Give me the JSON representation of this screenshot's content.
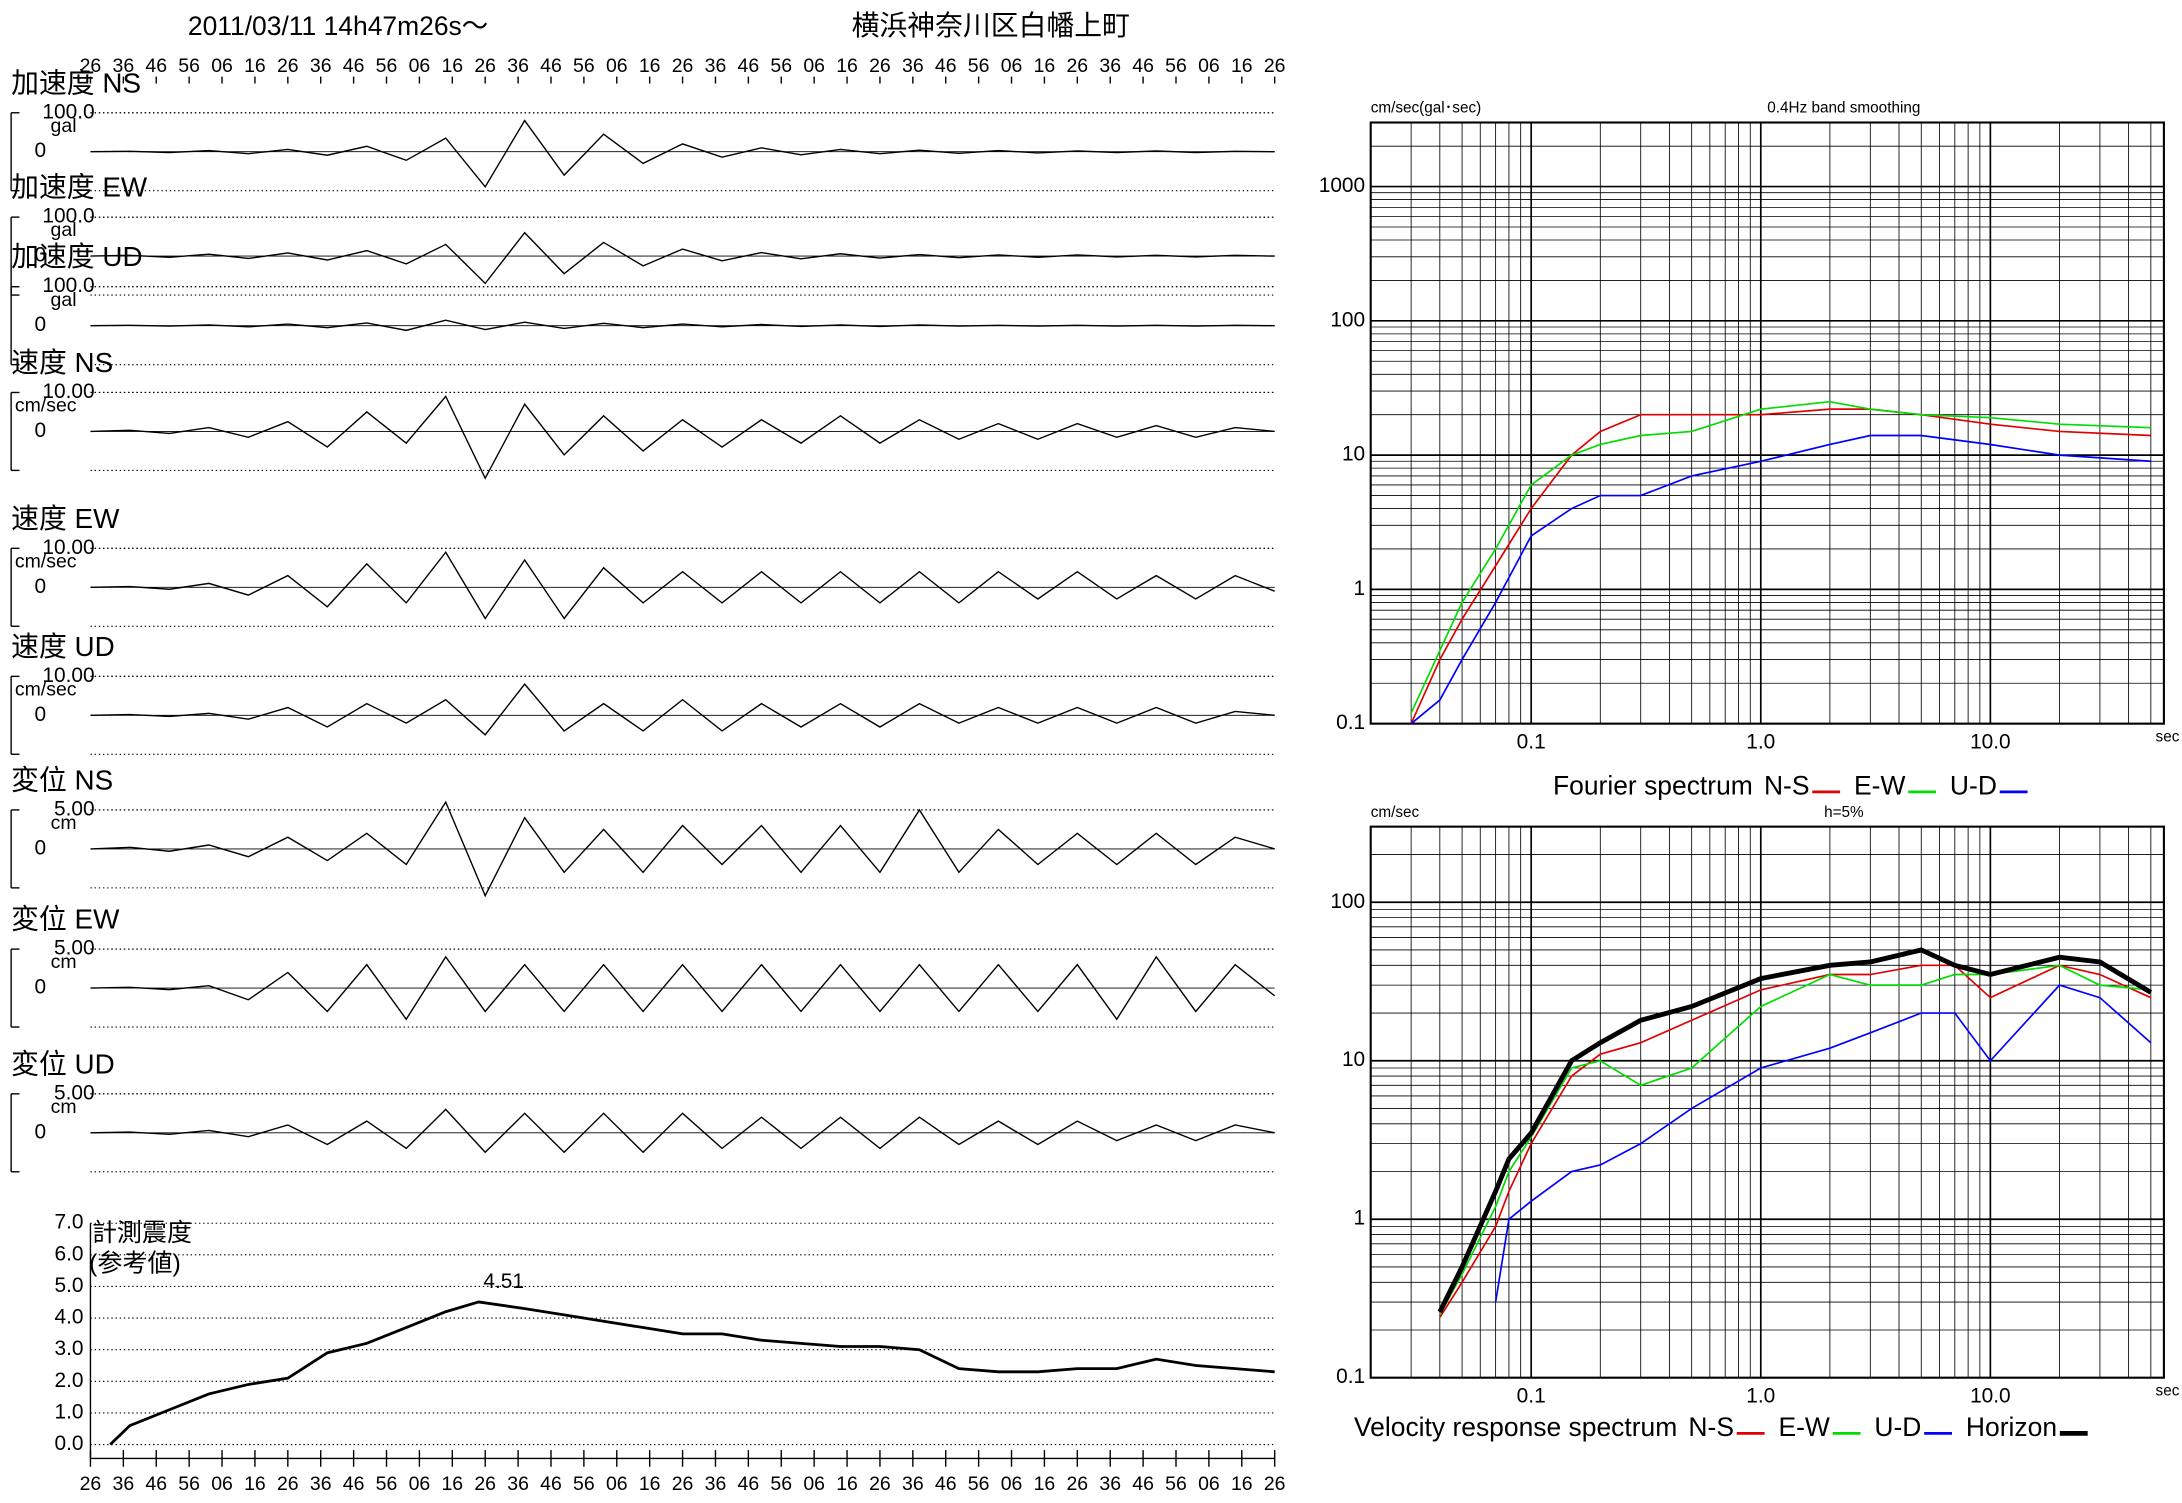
{
  "header": {
    "datetime": "2011/03/11  14h47m26s～",
    "location": "横浜神奈川区白幡上町"
  },
  "chart_data": [
    {
      "type": "waveform",
      "xlim": [
        0,
        360
      ],
      "xticks": [
        {
          "value": 0,
          "label": "26"
        },
        {
          "value": 10,
          "label": "36"
        },
        {
          "value": 20,
          "label": "46"
        },
        {
          "value": 30,
          "label": "56"
        },
        {
          "value": 40,
          "label": "06"
        },
        {
          "value": 50,
          "label": "16"
        },
        {
          "value": 60,
          "label": "26"
        },
        {
          "value": 70,
          "label": "36"
        },
        {
          "value": 80,
          "label": "46"
        },
        {
          "value": 90,
          "label": "56"
        },
        {
          "value": 100,
          "label": "06"
        },
        {
          "value": 110,
          "label": "16"
        },
        {
          "value": 120,
          "label": "26"
        },
        {
          "value": 130,
          "label": "36"
        },
        {
          "value": 140,
          "label": "46"
        },
        {
          "value": 150,
          "label": "56"
        },
        {
          "value": 160,
          "label": "06"
        },
        {
          "value": 170,
          "label": "16"
        },
        {
          "value": 180,
          "label": "26"
        },
        {
          "value": 190,
          "label": "36"
        },
        {
          "value": 200,
          "label": "46"
        },
        {
          "value": 210,
          "label": "56"
        },
        {
          "value": 220,
          "label": "06"
        },
        {
          "value": 230,
          "label": "16"
        },
        {
          "value": 240,
          "label": "26"
        },
        {
          "value": 250,
          "label": "36"
        },
        {
          "value": 260,
          "label": "46"
        },
        {
          "value": 270,
          "label": "56"
        },
        {
          "value": 280,
          "label": "06"
        },
        {
          "value": 290,
          "label": "16"
        },
        {
          "value": 300,
          "label": "26"
        },
        {
          "value": 310,
          "label": "36"
        },
        {
          "value": 320,
          "label": "46"
        },
        {
          "value": 330,
          "label": "56"
        },
        {
          "value": 340,
          "label": "06"
        },
        {
          "value": 350,
          "label": "16"
        },
        {
          "value": 360,
          "label": "26"
        }
      ],
      "x": [
        0,
        12,
        24,
        36,
        48,
        60,
        72,
        84,
        96,
        108,
        120,
        132,
        144,
        156,
        168,
        180,
        192,
        204,
        216,
        228,
        240,
        252,
        264,
        276,
        288,
        300,
        312,
        324,
        336,
        348,
        360
      ],
      "panels": [
        {
          "title": "加速度 NS",
          "unit": "gal",
          "ylim": [
            -100,
            100
          ],
          "yticks": [
            {
              "value": 100,
              "label": "100.0"
            },
            0
          ],
          "values": [
            0,
            1,
            -2,
            3,
            -5,
            6,
            -9,
            14,
            -22,
            35,
            -90,
            80,
            -60,
            45,
            -30,
            20,
            -14,
            10,
            -8,
            6,
            -5,
            4,
            -4,
            3,
            -3,
            2,
            -2,
            2,
            -2,
            1,
            0
          ]
        },
        {
          "title": "加速度 EW",
          "unit": "gal",
          "ylim": [
            -100,
            100
          ],
          "yticks": [
            {
              "value": 100,
              "label": "100.0"
            },
            0
          ],
          "values": [
            0,
            2,
            -3,
            5,
            -6,
            8,
            -10,
            14,
            -20,
            30,
            -70,
            60,
            -45,
            35,
            -25,
            18,
            -12,
            9,
            -7,
            6,
            -5,
            4,
            -4,
            3,
            -3,
            3,
            -2,
            2,
            -2,
            2,
            0
          ]
        },
        {
          "title": "加速度 UD",
          "unit": "gal",
          "ylim": [
            -100,
            100
          ],
          "yticks": [
            {
              "value": 100,
              "label": "100.0"
            },
            0
          ],
          "values": [
            0,
            1,
            -1,
            2,
            -3,
            4,
            -5,
            7,
            -12,
            14,
            -10,
            9,
            -7,
            6,
            -5,
            4,
            -3,
            3,
            -2,
            2,
            -2,
            2,
            -1,
            1,
            -1,
            1,
            -1,
            1,
            -1,
            1,
            0
          ]
        },
        {
          "title": "速度 NS",
          "unit": "cm/sec",
          "ylim": [
            -10,
            10
          ],
          "yticks": [
            {
              "value": 10,
              "label": "10.00"
            },
            0
          ],
          "values": [
            0,
            0.3,
            -0.5,
            1,
            -1.5,
            2.5,
            -4,
            5,
            -3,
            9,
            -12,
            7,
            -6,
            4,
            -5,
            3,
            -4,
            3,
            -3,
            4,
            -3,
            3,
            -2,
            2,
            -2,
            2,
            -1.5,
            1.5,
            -1.5,
            1,
            0
          ]
        },
        {
          "title": "速度 EW",
          "unit": "cm/sec",
          "ylim": [
            -10,
            10
          ],
          "yticks": [
            {
              "value": 10,
              "label": "10.00"
            },
            0
          ],
          "values": [
            0,
            0.2,
            -0.5,
            1,
            -2,
            3,
            -5,
            6,
            -4,
            9,
            -8,
            7,
            -8,
            5,
            -4,
            4,
            -4,
            4,
            -4,
            4,
            -4,
            4,
            -4,
            4,
            -3,
            4,
            -3,
            3,
            -3,
            3,
            -1
          ]
        },
        {
          "title": "速度 UD",
          "unit": "cm/sec",
          "ylim": [
            -10,
            10
          ],
          "yticks": [
            {
              "value": 10,
              "label": "10.00"
            },
            0
          ],
          "values": [
            0,
            0.2,
            -0.3,
            0.5,
            -1,
            2,
            -3,
            3,
            -2,
            4,
            -5,
            8,
            -4,
            3,
            -4,
            4,
            -4,
            3,
            -3,
            3,
            -3,
            3,
            -2,
            2,
            -2,
            2,
            -2,
            2,
            -2,
            1,
            0
          ]
        },
        {
          "title": "変位 NS",
          "unit": "cm",
          "ylim": [
            -5,
            5
          ],
          "yticks": [
            {
              "value": 5,
              "label": "5.00"
            },
            0
          ],
          "values": [
            0,
            0.2,
            -0.3,
            0.5,
            -1,
            1.5,
            -1.5,
            2,
            -2,
            6,
            -6,
            4,
            -3,
            2.5,
            -3,
            3,
            -2,
            3,
            -3,
            3,
            -3,
            5,
            -3,
            2.5,
            -2,
            2,
            -2,
            2,
            -2,
            1.5,
            0
          ]
        },
        {
          "title": "変位 EW",
          "unit": "cm",
          "ylim": [
            -5,
            5
          ],
          "yticks": [
            {
              "value": 5,
              "label": "5.00"
            },
            0
          ],
          "values": [
            0,
            0.1,
            -0.2,
            0.3,
            -1.5,
            2,
            -3,
            3,
            -4,
            4,
            -3,
            3,
            -3,
            3,
            -3,
            3,
            -3,
            3,
            -3,
            3,
            -3,
            3,
            -3,
            3,
            -3,
            3,
            -4,
            4,
            -3,
            3,
            -1
          ]
        },
        {
          "title": "変位 UD",
          "unit": "cm",
          "ylim": [
            -5,
            5
          ],
          "yticks": [
            {
              "value": 5,
              "label": "5.00"
            },
            0
          ],
          "values": [
            0,
            0.1,
            -0.2,
            0.3,
            -0.5,
            1,
            -1.5,
            1.5,
            -2,
            3,
            -2.5,
            2.5,
            -2.5,
            2.5,
            -2.5,
            2.5,
            -2,
            2,
            -2,
            2,
            -2,
            2,
            -1.5,
            1.5,
            -1.5,
            1.5,
            -1,
            1,
            -1,
            1,
            0
          ]
        }
      ]
    },
    {
      "type": "intensity",
      "title": "計測震度",
      "subtitle": "(参考値)",
      "peak_label": "4.51",
      "x": [
        6,
        12,
        24,
        36,
        48,
        60,
        72,
        84,
        96,
        108,
        118,
        132,
        144,
        156,
        168,
        180,
        192,
        204,
        216,
        228,
        240,
        252,
        264,
        276,
        288,
        300,
        312,
        324,
        336,
        348,
        360
      ],
      "values": [
        0,
        0.6,
        1.1,
        1.6,
        1.9,
        2.1,
        2.9,
        3.2,
        3.7,
        4.2,
        4.51,
        4.3,
        4.1,
        3.9,
        3.7,
        3.5,
        3.5,
        3.3,
        3.2,
        3.1,
        3.1,
        3.0,
        2.4,
        2.3,
        2.3,
        2.4,
        2.4,
        2.7,
        2.5,
        2.4,
        2.3
      ],
      "ylim": [
        0,
        7
      ],
      "yticks": [
        {
          "value": 0,
          "label": "0.0"
        },
        {
          "value": 1,
          "label": "1.0"
        },
        {
          "value": 2,
          "label": "2.0"
        },
        {
          "value": 3,
          "label": "3.0"
        },
        {
          "value": 4,
          "label": "4.0"
        },
        {
          "value": 5,
          "label": "5.0"
        },
        {
          "value": 6,
          "label": "6.0"
        },
        {
          "value": 7,
          "label": "7.0"
        }
      ]
    },
    {
      "type": "loglog",
      "title": "0.4Hz band smoothing",
      "y_label": "cm/sec(gal･sec)",
      "x_label": "sec",
      "legend_title": "Fourier spectrum",
      "xlim": [
        0.02,
        57
      ],
      "ylim": [
        0.1,
        3000
      ],
      "log_x": true,
      "log_y": true,
      "grid": true,
      "xticks": [
        0.1,
        {
          "value": 1,
          "label": "1.0"
        },
        {
          "value": 10,
          "label": "10.0"
        }
      ],
      "yticks": [
        0.1,
        1,
        10,
        100,
        1000
      ],
      "x": [
        0.03,
        0.04,
        0.05,
        0.07,
        0.1,
        0.15,
        0.2,
        0.3,
        0.5,
        1,
        2,
        3,
        5,
        10,
        20,
        50
      ],
      "series": [
        {
          "name": "N-S",
          "color": "#e00000",
          "values": [
            0.1,
            0.3,
            0.6,
            1.5,
            4,
            10,
            15,
            20,
            20,
            20,
            22,
            22,
            20,
            17,
            15,
            14
          ]
        },
        {
          "name": "E-W",
          "color": "#00dd00",
          "values": [
            0.12,
            0.35,
            0.8,
            2,
            6,
            10,
            12,
            14,
            15,
            22,
            25,
            22,
            20,
            19,
            17,
            16
          ]
        },
        {
          "name": "U-D",
          "color": "#0000ff",
          "values": [
            0.1,
            0.15,
            0.3,
            0.8,
            2.5,
            4,
            5,
            5,
            7,
            9,
            12,
            14,
            14,
            12,
            10,
            9
          ]
        }
      ]
    },
    {
      "type": "loglog",
      "title": "h=5%",
      "y_label": "cm/sec",
      "x_label": "sec",
      "legend_title": "Velocity response spectrum",
      "xlim": [
        0.02,
        57
      ],
      "ylim": [
        0.1,
        300
      ],
      "log_x": true,
      "log_y": true,
      "grid": true,
      "xticks": [
        0.1,
        {
          "value": 1,
          "label": "1.0"
        },
        {
          "value": 10,
          "label": "10.0"
        }
      ],
      "yticks": [
        0.1,
        1,
        10,
        100
      ],
      "x": [
        0.04,
        0.05,
        0.07,
        0.08,
        0.1,
        0.15,
        0.2,
        0.3,
        0.5,
        1,
        2,
        3,
        5,
        7,
        10,
        20,
        30,
        50
      ],
      "series": [
        {
          "name": "N-S",
          "color": "#e00000",
          "values": [
            0.24,
            0.4,
            0.9,
            1.5,
            3,
            8,
            11,
            13,
            18,
            28,
            35,
            35,
            40,
            40,
            25,
            40,
            35,
            25
          ]
        },
        {
          "name": "E-W",
          "color": "#00dd00",
          "values": [
            0.25,
            0.45,
            1.2,
            2,
            3.3,
            9,
            10,
            7,
            9,
            22,
            35,
            30,
            30,
            35,
            35,
            40,
            30,
            28
          ]
        },
        {
          "name": "U-D",
          "color": "#0000ff",
          "values": [
            null,
            null,
            0.3,
            1,
            1.3,
            2,
            2.2,
            3,
            5,
            9,
            12,
            15,
            20,
            20,
            10,
            30,
            25,
            13
          ]
        },
        {
          "name": "Horizon",
          "color": "#000000",
          "values": [
            0.26,
            0.5,
            1.5,
            2.4,
            3.5,
            10,
            13,
            18,
            22,
            33,
            40,
            42,
            50,
            40,
            35,
            45,
            42,
            27
          ]
        }
      ]
    }
  ]
}
